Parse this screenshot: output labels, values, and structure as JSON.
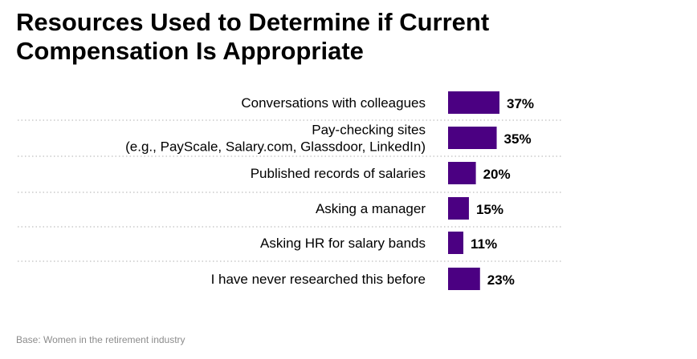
{
  "title": {
    "line1": "Resources Used to Determine if Current",
    "line2": "Compensation Is Appropriate"
  },
  "footnote": "Base: Women in the retirement industry",
  "colors": {
    "bar": "#4b0082",
    "divider": "#bfbfbf",
    "label": "#000000",
    "footnote": "#8c8c8c"
  },
  "chart_data": {
    "type": "bar",
    "orientation": "horizontal",
    "categories": [
      [
        "Conversations with colleagues"
      ],
      [
        "Pay-checking sites",
        "(e.g., PayScale, Salary.com, Glassdoor, LinkedIn)"
      ],
      [
        "Published records of salaries"
      ],
      [
        "Asking a manager"
      ],
      [
        "Asking HR for salary bands"
      ],
      [
        "I have never researched this before"
      ]
    ],
    "values": [
      37,
      35,
      20,
      15,
      11,
      23
    ],
    "value_labels": [
      "37%",
      "35%",
      "20%",
      "15%",
      "11%",
      "23%"
    ],
    "unit": "%",
    "grid": false,
    "legend": "none"
  }
}
